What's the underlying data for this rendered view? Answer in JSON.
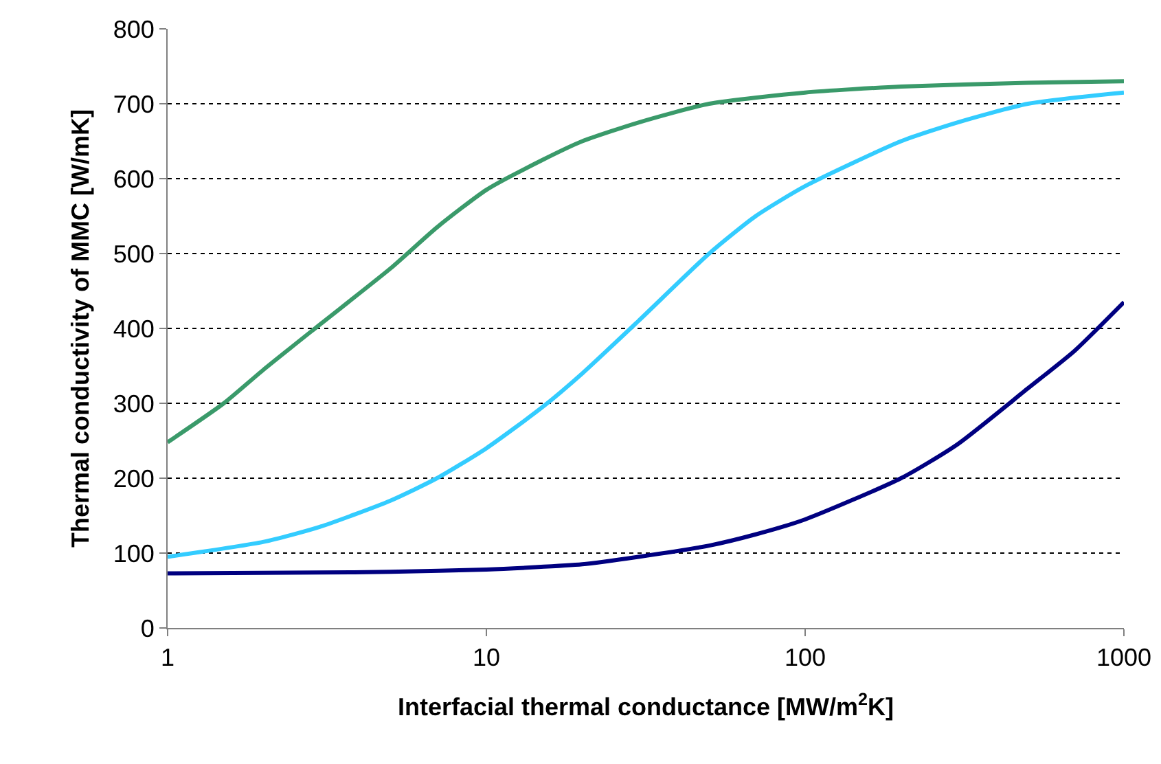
{
  "chart_data": {
    "type": "line",
    "xlabel": "Interfacial thermal conductance [MW/m$^{2}$K]",
    "ylabel": "Thermal conductivity of MMC [W/mK]",
    "log": "x",
    "grid": "y",
    "marker": "none",
    "line_style": "solid",
    "xlim": [
      1,
      1000
    ],
    "xticks": [
      1,
      10,
      100,
      1000
    ],
    "ylim": [
      0,
      800
    ],
    "yticks": [
      0,
      100,
      200,
      300,
      400,
      500,
      600,
      700,
      800
    ],
    "series": [
      {
        "color": "#3a9a6a",
        "x": [
          1,
          1.5,
          2,
          3,
          5,
          7,
          10,
          15,
          20,
          30,
          50,
          100,
          200,
          500,
          1000
        ],
        "values": [
          248,
          300,
          345,
          405,
          480,
          535,
          585,
          625,
          650,
          675,
          700,
          715,
          723,
          728,
          730
        ]
      },
      {
        "color": "#33ccff",
        "x": [
          1,
          2,
          3,
          5,
          7,
          10,
          15,
          20,
          30,
          50,
          70,
          100,
          200,
          300,
          500,
          1000
        ],
        "values": [
          95,
          115,
          135,
          170,
          200,
          240,
          295,
          340,
          410,
          500,
          550,
          590,
          650,
          675,
          700,
          715
        ]
      },
      {
        "color": "#000080",
        "x": [
          1,
          3,
          5,
          10,
          20,
          30,
          50,
          70,
          100,
          200,
          300,
          500,
          700,
          1000
        ],
        "values": [
          73,
          74,
          75,
          78,
          85,
          95,
          110,
          125,
          145,
          200,
          245,
          320,
          370,
          435
        ]
      }
    ]
  }
}
